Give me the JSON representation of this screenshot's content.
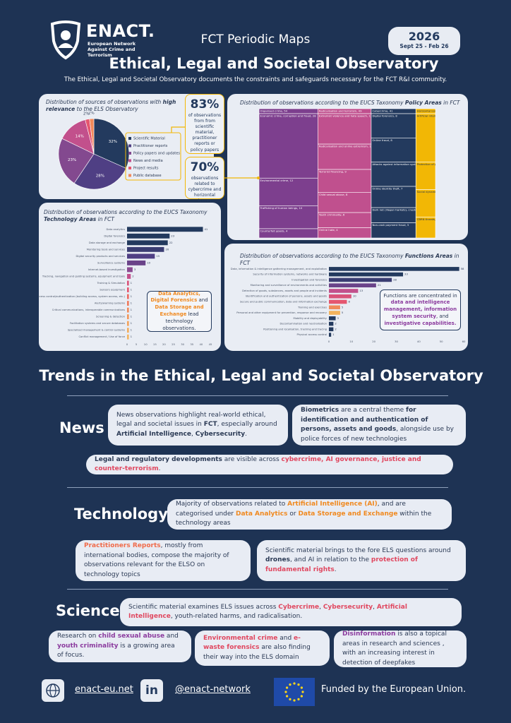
{
  "header": {
    "logo": "ENACT.",
    "logo_subtitle": "European Network Against Crime and Terrorism",
    "series": "FCT Periodic Maps",
    "year": "2026",
    "period": "Sept 25 - Feb 26",
    "title": "Ethical, Legal and Societal Observatory",
    "subtitle": "The Ethical, Legal and Societal Observatory documents the constraints and safeguards necessary for the FCT R&I community."
  },
  "chart_data": [
    {
      "type": "pie",
      "title": [
        "Distribution of sources of observations with ",
        "high relevance",
        " to the ELS Observatory"
      ],
      "categories": [
        "Scientific Material",
        "Practitioner reports",
        "Policy papers and updates",
        "News and media",
        "Project results",
        "Public database"
      ],
      "values": [
        32,
        28,
        23,
        14,
        2,
        2
      ],
      "value_labels": [
        "32%",
        "28%",
        "23%",
        "14%",
        "2%",
        "2%"
      ],
      "colors": [
        "#233a5e",
        "#4f3f84",
        "#83498f",
        "#c2508c",
        "#e5566f",
        "#f2895a"
      ]
    },
    {
      "type": "treemap",
      "title": [
        "Distribution of observations according to the EUCS Taxonomy ",
        "Policy Areas",
        " in FCT"
      ],
      "groups": [
        {
          "label": "Organised crime, 54",
          "color": "#7d3f8e",
          "children": [
            {
              "label": "Economic crime, corruption and fraud, 28",
              "value": 28
            },
            {
              "label": "Environmental crime, 12",
              "value": 12
            },
            {
              "label": "Trafficking of human beings, 10",
              "value": 10
            },
            {
              "label": "Counterfeit goods, 4",
              "value": 4
            }
          ]
        },
        {
          "label": "Radicalisation and terrorism, 49",
          "color": "#c0508e",
          "children": [
            {
              "label": "Extremist violence and hate speech, 12",
              "value": 12
            },
            {
              "label": "Radicalisation and online extremism, 10",
              "value": 10
            },
            {
              "label": "Terrorist financing, 9",
              "value": 9
            },
            {
              "label": "Child sexual abuse, 8",
              "value": 8
            },
            {
              "label": "Youth criminality, 6",
              "value": 6
            },
            {
              "label": "Online hate, 4",
              "value": 4
            }
          ]
        },
        {
          "label": "Cybercrime, 41",
          "color": "#233a5e",
          "children": [
            {
              "label": "Digital forensics, 8",
              "value": 8
            },
            {
              "label": "Online fraud, 8",
              "value": 8
            },
            {
              "label": "Attacks against information systems, 8",
              "value": 8
            },
            {
              "label": "Online identity theft, 7",
              "value": 7
            },
            {
              "label": "Dark net (illegal markets), cryptocurrencies, 5",
              "value": 5
            },
            {
              "label": "Non-cash payment fraud, 5",
              "value": 5
            }
          ]
        },
        {
          "label": "Horizontal issues, 18",
          "color": "#f2b705",
          "children": [
            {
              "label": "Artificial intelligence, 7",
              "value": 7
            },
            {
              "label": "Protection of public spaces, 4",
              "value": 4
            },
            {
              "label": "Social dynamics, 4",
              "value": 4
            },
            {
              "label": "CBRN threats, 3",
              "value": 3
            }
          ]
        }
      ]
    },
    {
      "type": "bar",
      "title": [
        "Distribution of observations according to the EUCS Taxonomy ",
        "Technology Areas",
        " in FCT"
      ],
      "categories": [
        "Data analytics",
        "Digital forensics",
        "Data storage and exchange",
        "Monitoring tools and services",
        "Digital security products and services",
        "Surveillance systems",
        "Internet-based investigation",
        "Tracking, navigation and guiding systems, equipment and tools",
        "Training & Simulation",
        "Sensors equipment",
        "Access control/authentication (building access, system access, etc.)",
        "Alerts/warning systems",
        "Critical communications, interoperable communications",
        "Screening & detection",
        "Facilitation systems and secure databases",
        "Specialised management & control systems",
        "Conflict management / Use of force"
      ],
      "values": [
        41,
        23,
        22,
        20,
        15,
        10,
        3,
        2,
        1,
        1,
        1,
        1,
        1,
        1,
        1,
        1,
        1
      ],
      "colors": [
        "#233a5e",
        "#233a5e",
        "#233a5e",
        "#3a3d72",
        "#4f3f84",
        "#6a4389",
        "#8a4a91",
        "#c2508c",
        "#d9537a",
        "#e5566f",
        "#ec6a62",
        "#ef7a5c",
        "#f08a5a",
        "#f2975a",
        "#f3a35c",
        "#f3ad5e",
        "#f4b562"
      ],
      "xlim": [
        0,
        45
      ],
      "xticks": [
        0,
        5,
        10,
        15,
        20,
        25,
        30,
        35,
        40,
        45
      ]
    },
    {
      "type": "bar",
      "title": [
        "Distribution of observations according to the EUCS Taxonomy ",
        "Functions Areas",
        " in FCT"
      ],
      "categories": [
        "Data, information & intelligence gathering management, and exploitation",
        "Security of information systems, networks and hardware",
        "Investigation and forensics",
        "Monitoring and surveillance of environments and activities",
        "Detection of goods, substances, assets and people and incidents",
        "Identification and authentication of persons, assets and goods",
        "Secure and public communication, data and information exchange",
        "Training and exercises",
        "Personal and other equipment for prevention, response and recovery",
        "Mobility and deployability",
        "Decontamination and neutralisation",
        "Positioning and localisation, tracking and tracing",
        "Physical access control"
      ],
      "values": [
        58,
        33,
        28,
        21,
        13,
        10,
        8,
        5,
        5,
        3,
        2,
        2,
        1
      ],
      "colors": [
        "#233a5e",
        "#233a5e",
        "#3a3d72",
        "#6a4389",
        "#c2508c",
        "#d9537a",
        "#e5566f",
        "#f08a5a",
        "#f3b35c",
        "#233a5e",
        "#233a5e",
        "#233a5e",
        "#233a5e"
      ],
      "xlim": [
        0,
        60
      ],
      "xticks": [
        0,
        10,
        20,
        30,
        40,
        50,
        60
      ]
    }
  ],
  "callouts": {
    "sources": {
      "figure": "83%",
      "text": "of observations from from scientific material, practitioner reports or policy papers"
    },
    "policy": {
      "figure": "70%",
      "text": "observations related to cybercrime and horizontal issues"
    },
    "technology": [
      "Data Analytics, Digital Forensics",
      " and ",
      "Data Storage and Exchange",
      " lead technology observations."
    ],
    "functions": [
      "Functions are concentrated in ",
      "data and intelligence management, information system security",
      ", and ",
      "investigative capabilities."
    ]
  },
  "trends": {
    "title": "Trends in the Ethical, Legal and Societal Observatory",
    "news": {
      "label": "News",
      "boxes": [
        [
          "News observations highlight real-world ethical, legal and societal issues in ",
          "FCT",
          ", especially around ",
          "Artificial Intelligence",
          ", ",
          "Cybersecurity",
          "."
        ],
        [
          "Biometrics",
          " are a central theme ",
          "for identification and authentication of persons, assets and goods",
          ", alongside use by police forces of new technologies"
        ],
        [
          "Legal and regulatory developments",
          " are visible across ",
          "cybercrime, AI governance, justice and counter-terrorism",
          "."
        ]
      ]
    },
    "technology": {
      "label": "Technology",
      "boxes": [
        [
          "Majority of observations related to ",
          "Artificial Intelligence (AI)",
          ", and are categorised under ",
          "Data Analytics",
          " or ",
          "Data Storage and Exchange",
          " within the technology areas"
        ],
        [
          "Practitioners Reports",
          ", mostly from international bodies, compose the majority of observations relevant for the ELSO on technology topics"
        ],
        [
          "Scientific material brings to the fore ELS questions around ",
          "drones",
          ", and AI in relation to the ",
          "protection of fundamental rights",
          "."
        ]
      ]
    },
    "science": {
      "label": "Science",
      "boxes": [
        [
          "Scientific material examines ELS issues across ",
          "Cybercrime",
          ", ",
          "Cybersecurity",
          ", ",
          "Artificial Intelligence",
          ", youth-related harms, and radicalisation."
        ],
        [
          "Research on ",
          "child sexual abuse",
          " and ",
          "youth criminality",
          " is a growing area of focus."
        ],
        [
          "Environmental crime",
          " and ",
          "e-waste forensics",
          " are also finding their way into the ELS domain"
        ],
        [
          "Disinformation",
          " is also a topical areas in research and sciences , with an increasing interest in detection of deepfakes"
        ]
      ]
    }
  },
  "footer": {
    "website": "enact-eu.net",
    "linkedin_icon": "in",
    "linkedin": "@enact-network",
    "funding": "Funded by the European Union."
  }
}
